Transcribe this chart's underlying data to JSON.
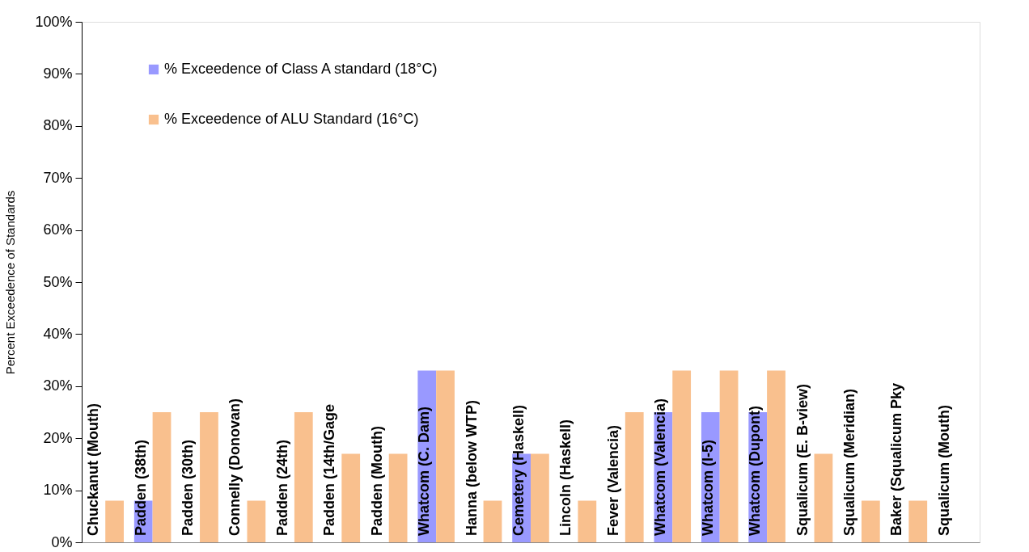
{
  "chart_data": {
    "type": "bar",
    "ylabel": "Percent Exceedence of Standards",
    "categories": [
      "Chuckanut  (Mouth)",
      "Padden (38th)",
      "Padden (30th)",
      "Connelly (Donovan)",
      "Padden (24th)",
      "Padden (14th/Gage",
      "Padden (Mouth)",
      "Whatcom (C. Dam)",
      "Hanna (below WTP)",
      "Cemetery (Haskell)",
      "Lincoln (Haskell)",
      "Fever (Valencia)",
      "Whatcom (Valencia)",
      "Whatcom (I-5)",
      "Whatcom (Dupont)",
      "Squalicum (E.  B-view)",
      "Squalicum (Meridian)",
      "Baker (Squalicum Pky",
      "Squalicum (Mouth)"
    ],
    "series": [
      {
        "name": "% Exceedence of Class A standard (18°C)",
        "color": "#9999ff",
        "values": [
          0,
          8,
          0,
          0,
          0,
          0,
          0,
          33,
          0,
          17,
          0,
          0,
          25,
          25,
          25,
          0,
          0,
          0,
          0
        ]
      },
      {
        "name": "% Exceedence of ALU Standard (16°C)",
        "color": "#f9c08e",
        "values": [
          8,
          25,
          25,
          8,
          25,
          17,
          17,
          33,
          8,
          17,
          8,
          25,
          33,
          33,
          33,
          17,
          8,
          8,
          0
        ]
      }
    ],
    "ylim": [
      0,
      100
    ],
    "yticks": [
      {
        "value": 0,
        "label": "0%"
      },
      {
        "value": 10,
        "label": "10%"
      },
      {
        "value": 20,
        "label": "20%"
      },
      {
        "value": 30,
        "label": "30%"
      },
      {
        "value": 40,
        "label": "40%"
      },
      {
        "value": 50,
        "label": "50%"
      },
      {
        "value": 60,
        "label": "60%"
      },
      {
        "value": 70,
        "label": "70%"
      },
      {
        "value": 80,
        "label": "80%"
      },
      {
        "value": 90,
        "label": "90%"
      },
      {
        "value": 100,
        "label": "100%"
      }
    ],
    "grid": false,
    "legend": "top left"
  }
}
